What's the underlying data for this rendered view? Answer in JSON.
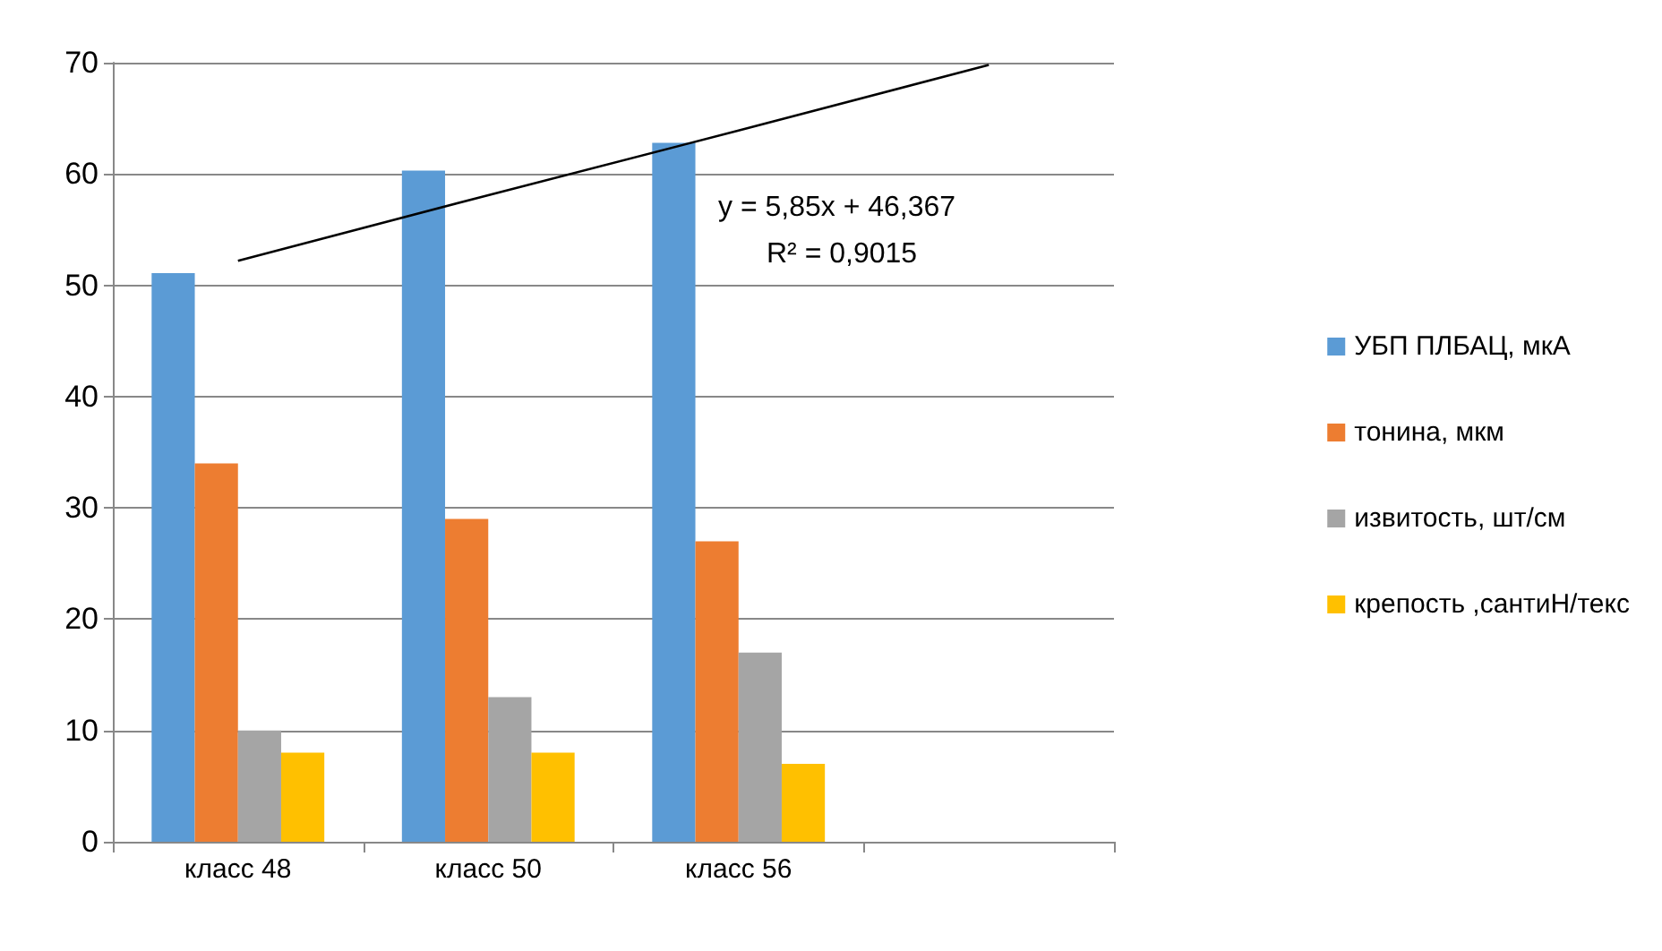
{
  "chart_data": {
    "type": "bar",
    "categories": [
      "класс 48",
      "класс 50",
      "класс 56",
      null
    ],
    "series": [
      {
        "name": "УБП ПЛБАЦ, мкА",
        "color": "#5b9bd5",
        "values": [
          51.1,
          60.3,
          62.8,
          null
        ]
      },
      {
        "name": "тонина, мкм",
        "color": "#ed7d31",
        "values": [
          34,
          29,
          27,
          null
        ]
      },
      {
        "name": "извитость, шт/см",
        "color": "#a5a5a5",
        "values": [
          10,
          13,
          17,
          null
        ]
      },
      {
        "name": "крепость ,сантиН/текс",
        "color": "#ffc000",
        "values": [
          8,
          8,
          7,
          null
        ]
      },
      {
        "type": "line",
        "color": "#000000",
        "values": [
          52.2,
          58.1,
          63.9,
          69.8
        ],
        "marker": "none",
        "line_style": "solid"
      }
    ],
    "ylim": [
      0,
      70
    ],
    "yticks": [
      0,
      10,
      20,
      30,
      40,
      50,
      60,
      70
    ],
    "grid": "y",
    "legend": "right",
    "annotations": [
      "y = 5,85x + 46,367",
      "R² = 0,9015"
    ]
  }
}
